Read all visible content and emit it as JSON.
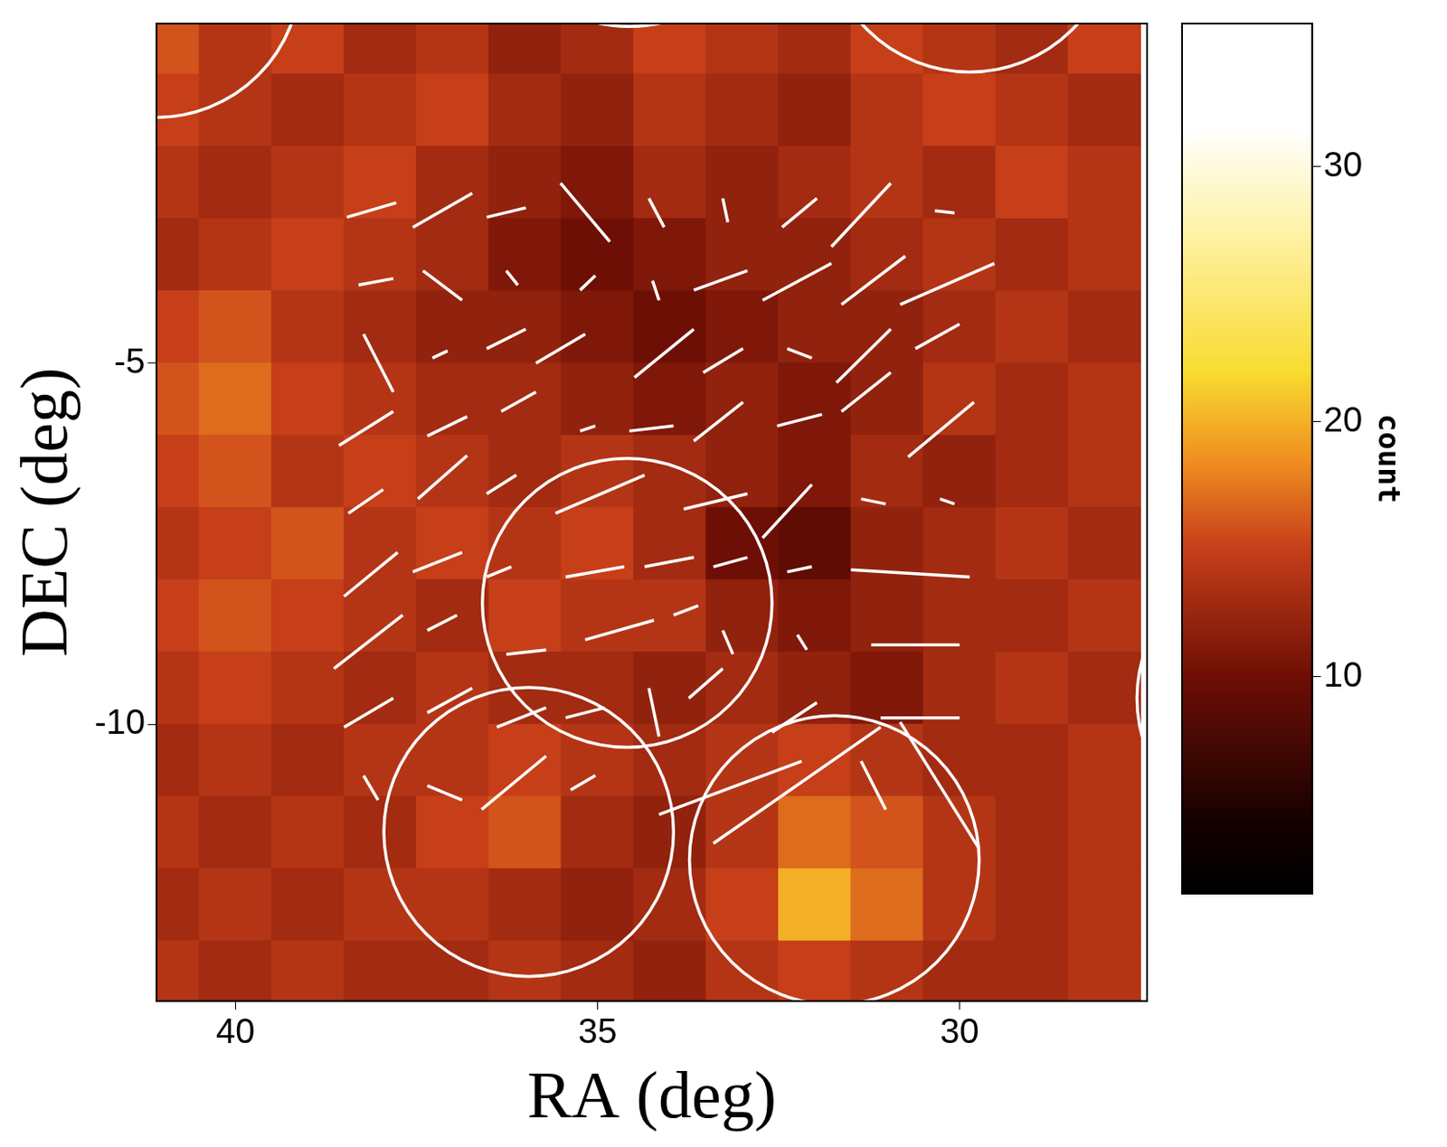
{
  "chart_data": {
    "type": "heatmap",
    "x_label": "RA (deg)",
    "y_label": "DEC (deg)",
    "xlim": [
      41.09,
      27.41
    ],
    "ylim": [
      -13.83,
      -0.3
    ],
    "xticks": [
      40,
      35,
      30
    ],
    "yticks": [
      -5,
      -10
    ],
    "cell_x": [
      41,
      40,
      39,
      38,
      37,
      36,
      35,
      34,
      33,
      32,
      31,
      30,
      29,
      28
    ],
    "cell_y": [
      -0.5,
      -1.5,
      -2.5,
      -3.5,
      -4.5,
      -5.5,
      -6.5,
      -7.5,
      -8.5,
      -9.5,
      -10.5,
      -11.5,
      -12.5,
      -13.5
    ],
    "cells": [
      [
        16,
        14,
        15,
        13,
        14,
        12,
        13,
        15,
        14,
        13,
        15,
        14,
        13,
        15
      ],
      [
        15,
        14,
        13,
        14,
        15,
        13,
        12,
        14,
        13,
        12,
        14,
        15,
        14,
        13
      ],
      [
        14,
        13,
        14,
        15,
        13,
        12,
        11,
        13,
        12,
        13,
        14,
        13,
        15,
        14
      ],
      [
        13,
        14,
        15,
        14,
        13,
        11,
        10,
        11,
        12,
        12,
        13,
        14,
        13,
        14
      ],
      [
        15,
        16,
        14,
        13,
        12,
        12,
        11,
        10,
        11,
        12,
        12,
        13,
        14,
        13
      ],
      [
        16,
        17,
        15,
        14,
        13,
        13,
        12,
        11,
        12,
        11,
        12,
        14,
        13,
        14
      ],
      [
        15,
        16,
        14,
        15,
        14,
        13,
        14,
        13,
        12,
        11,
        13,
        12,
        13,
        14
      ],
      [
        14,
        15,
        16,
        14,
        15,
        14,
        15,
        13,
        10,
        9,
        12,
        13,
        14,
        13
      ],
      [
        15,
        16,
        15,
        14,
        13,
        15,
        14,
        14,
        12,
        11,
        12,
        13,
        13,
        14
      ],
      [
        14,
        15,
        14,
        13,
        14,
        13,
        13,
        12,
        13,
        12,
        11,
        13,
        14,
        13
      ],
      [
        13,
        14,
        13,
        14,
        14,
        15,
        14,
        13,
        14,
        15,
        14,
        13,
        13,
        14
      ],
      [
        14,
        13,
        14,
        13,
        15,
        16,
        13,
        12,
        14,
        17,
        16,
        14,
        13,
        14
      ],
      [
        13,
        14,
        13,
        14,
        14,
        13,
        12,
        13,
        15,
        20,
        17,
        14,
        13,
        14
      ],
      [
        14,
        13,
        14,
        13,
        13,
        14,
        13,
        12,
        14,
        15,
        14,
        13,
        13,
        14
      ]
    ],
    "colorbar": {
      "label": "count",
      "lim": [
        1.5,
        35.6
      ],
      "ticks": [
        10,
        20,
        30
      ]
    },
    "color": "#ffffff",
    "segments": [
      [
        38.46,
        -2.98,
        37.78,
        -2.78
      ],
      [
        37.55,
        -3.12,
        36.73,
        -2.65
      ],
      [
        36.53,
        -2.98,
        35.99,
        -2.85
      ],
      [
        35.51,
        -2.51,
        34.83,
        -3.32
      ],
      [
        34.29,
        -2.72,
        34.08,
        -3.12
      ],
      [
        33.27,
        -2.72,
        33.2,
        -3.05
      ],
      [
        32.45,
        -3.12,
        31.97,
        -2.72
      ],
      [
        31.77,
        -3.39,
        30.95,
        -2.51
      ],
      [
        30.34,
        -2.89,
        30.07,
        -2.92
      ],
      [
        38.3,
        -3.92,
        37.82,
        -3.83
      ],
      [
        37.41,
        -3.72,
        36.87,
        -4.13
      ],
      [
        36.26,
        -3.72,
        36.1,
        -3.92
      ],
      [
        35.24,
        -3.99,
        35.03,
        -3.79
      ],
      [
        34.24,
        -3.86,
        34.15,
        -4.13
      ],
      [
        33.67,
        -3.99,
        32.93,
        -3.72
      ],
      [
        32.72,
        -4.13,
        31.77,
        -3.62
      ],
      [
        31.63,
        -4.19,
        30.75,
        -3.52
      ],
      [
        30.82,
        -4.19,
        29.52,
        -3.62
      ],
      [
        38.23,
        -4.6,
        37.82,
        -5.4
      ],
      [
        37.28,
        -4.93,
        37.07,
        -4.83
      ],
      [
        36.53,
        -4.8,
        35.99,
        -4.53
      ],
      [
        35.85,
        -5.0,
        35.17,
        -4.6
      ],
      [
        34.49,
        -5.2,
        33.67,
        -4.53
      ],
      [
        33.54,
        -5.13,
        32.99,
        -4.8
      ],
      [
        32.38,
        -4.8,
        32.04,
        -4.93
      ],
      [
        31.7,
        -5.27,
        30.95,
        -4.53
      ],
      [
        30.61,
        -4.8,
        30.0,
        -4.46
      ],
      [
        38.57,
        -6.14,
        37.82,
        -5.67
      ],
      [
        37.35,
        -6.01,
        36.8,
        -5.74
      ],
      [
        36.33,
        -5.67,
        35.85,
        -5.4
      ],
      [
        35.24,
        -5.94,
        35.03,
        -5.87
      ],
      [
        34.56,
        -5.94,
        33.95,
        -5.87
      ],
      [
        33.67,
        -6.08,
        32.99,
        -5.54
      ],
      [
        32.52,
        -5.87,
        31.9,
        -5.71
      ],
      [
        31.63,
        -5.67,
        30.95,
        -5.13
      ],
      [
        30.71,
        -6.3,
        29.8,
        -5.54
      ],
      [
        38.44,
        -7.08,
        37.96,
        -6.75
      ],
      [
        37.48,
        -6.88,
        36.8,
        -6.28
      ],
      [
        36.53,
        -6.81,
        36.12,
        -6.55
      ],
      [
        35.58,
        -7.08,
        34.35,
        -6.55
      ],
      [
        33.81,
        -7.02,
        32.93,
        -6.81
      ],
      [
        32.72,
        -7.42,
        32.04,
        -6.68
      ],
      [
        31.36,
        -6.88,
        31.02,
        -6.95
      ],
      [
        30.27,
        -6.88,
        30.07,
        -6.95
      ],
      [
        38.5,
        -8.23,
        37.76,
        -7.62
      ],
      [
        37.55,
        -7.89,
        36.87,
        -7.62
      ],
      [
        36.53,
        -7.96,
        36.19,
        -7.82
      ],
      [
        35.44,
        -7.96,
        34.63,
        -7.82
      ],
      [
        34.35,
        -7.82,
        33.67,
        -7.69
      ],
      [
        33.4,
        -7.82,
        32.93,
        -7.69
      ],
      [
        32.38,
        -7.89,
        32.04,
        -7.82
      ],
      [
        31.5,
        -7.86,
        29.86,
        -7.96
      ],
      [
        38.64,
        -9.23,
        37.69,
        -8.49
      ],
      [
        37.35,
        -8.7,
        36.94,
        -8.49
      ],
      [
        36.26,
        -9.03,
        35.71,
        -8.97
      ],
      [
        35.17,
        -8.83,
        34.22,
        -8.56
      ],
      [
        33.95,
        -8.49,
        33.61,
        -8.36
      ],
      [
        33.27,
        -8.7,
        33.13,
        -9.03
      ],
      [
        32.24,
        -8.76,
        32.11,
        -8.97
      ],
      [
        31.22,
        -8.9,
        30.0,
        -8.9
      ],
      [
        38.5,
        -10.04,
        37.82,
        -9.64
      ],
      [
        37.35,
        -9.84,
        36.73,
        -9.5
      ],
      [
        36.39,
        -10.04,
        35.71,
        -9.77
      ],
      [
        35.44,
        -9.91,
        34.9,
        -9.77
      ],
      [
        34.29,
        -9.5,
        34.15,
        -10.17
      ],
      [
        33.74,
        -9.64,
        33.27,
        -9.23
      ],
      [
        32.59,
        -10.11,
        31.97,
        -9.7
      ],
      [
        31.09,
        -9.91,
        30.0,
        -9.91
      ],
      [
        38.23,
        -10.71,
        38.03,
        -11.05
      ],
      [
        37.35,
        -10.85,
        36.87,
        -11.05
      ],
      [
        36.6,
        -11.18,
        35.71,
        -10.44
      ],
      [
        35.37,
        -10.91,
        35.03,
        -10.71
      ],
      [
        34.15,
        -11.25,
        32.18,
        -10.51
      ],
      [
        33.4,
        -11.65,
        31.09,
        -10.04
      ],
      [
        31.36,
        -10.51,
        31.02,
        -11.18
      ],
      [
        30.82,
        -9.97,
        29.73,
        -11.72
      ]
    ],
    "circles": [
      {
        "x": 34.59,
        "y": -8.32,
        "r": 2
      },
      {
        "x": 35.95,
        "y": -11.49,
        "r": 2
      },
      {
        "x": 31.73,
        "y": -11.88,
        "r": 2
      },
      {
        "x": 34.56,
        "y": 1.66,
        "r": 2
      },
      {
        "x": 29.86,
        "y": 1.03,
        "r": 2
      },
      {
        "x": 41.1,
        "y": 0.4,
        "r": 2
      },
      {
        "x": 25.55,
        "y": -9.64,
        "r": 2
      }
    ]
  }
}
